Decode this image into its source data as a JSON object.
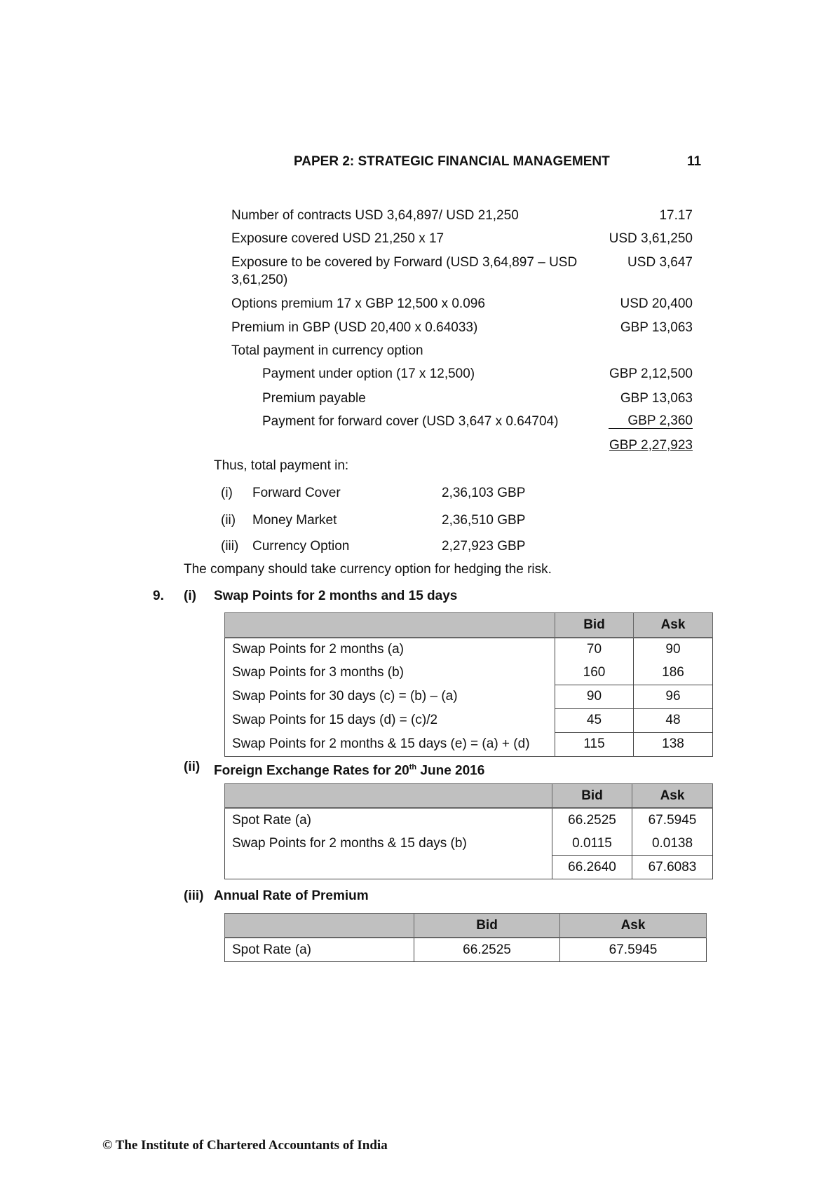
{
  "header": {
    "title": "PAPER 2: STRATEGIC FINANCIAL MANAGEMENT",
    "page_number": "11"
  },
  "calc_rows": [
    {
      "label": "Number of contracts USD 3,64,897/ USD 21,250",
      "value": "17.17"
    },
    {
      "label": "Exposure covered USD  21,250 x 17",
      "value": "USD 3,61,250"
    },
    {
      "label": "Exposure to be covered by Forward (USD 3,64,897 – USD",
      "label_cont": "3,61,250)",
      "value": "USD 3,647"
    },
    {
      "label": "Options premium 17 x GBP 12,500 x 0.096",
      "value": "USD 20,400"
    },
    {
      "label": "Premium in GBP (USD 20,400 x 0.64033)",
      "value": "GBP 13,063"
    },
    {
      "label": "Total payment in currency option",
      "value": ""
    },
    {
      "label": "Payment under option (17 x 12,500)",
      "value": "GBP 2,12,500"
    },
    {
      "label": "Premium payable",
      "value": "GBP 13,063"
    },
    {
      "label": "Payment for forward cover (USD 3,647 x 0.64704)",
      "value": "GBP 2,360"
    },
    {
      "label": "",
      "value": "GBP 2,27,923"
    }
  ],
  "summary": {
    "intro": "Thus, total payment in:",
    "items": [
      {
        "num": "(i)",
        "label": "Forward Cover",
        "value": "2,36,103 GBP"
      },
      {
        "num": "(ii)",
        "label": "Money Market",
        "value": "2,36,510 GBP"
      },
      {
        "num": "(iii)",
        "label": "Currency Option",
        "value": "2,27,923 GBP"
      }
    ],
    "conclusion": "The company should take currency option for hedging the risk."
  },
  "q9": {
    "number": "9.",
    "part1": {
      "num": "(i)",
      "title": "Swap Points for 2 months and 15 days",
      "headers": [
        "",
        "Bid",
        "Ask"
      ],
      "rows": [
        [
          "Swap Points for 2 months (a)",
          "70",
          "90"
        ],
        [
          "Swap Points for 3 months (b)",
          "160",
          "186"
        ],
        [
          "Swap Points for 30 days (c) = (b) – (a)",
          "90",
          "96"
        ],
        [
          "Swap Points for 15 days (d) = (c)/2",
          "45",
          "48"
        ],
        [
          "Swap Points for 2 months & 15 days (e) = (a) + (d)",
          "115",
          "138"
        ]
      ]
    },
    "part2": {
      "num": "(ii)",
      "title": "Foreign Exchange Rates for 20",
      "title_sup": "th",
      "title_end": " June 2016",
      "headers": [
        "",
        "Bid",
        "Ask"
      ],
      "rows": [
        [
          "Spot Rate (a)",
          "66.2525",
          "67.5945"
        ],
        [
          "Swap Points for 2 months & 15 days (b)",
          "0.0115",
          "0.0138"
        ],
        [
          "",
          "66.2640",
          "67.6083"
        ]
      ]
    },
    "part3": {
      "num": "(iii)",
      "title": "Annual Rate of Premium",
      "headers": [
        "",
        "Bid",
        "Ask"
      ],
      "rows": [
        [
          "Spot Rate (a)",
          "66.2525",
          "67.5945"
        ]
      ]
    }
  },
  "footer": "© The Institute of Chartered Accountants of India",
  "colors": {
    "table_header_bg": "#c0c0c0"
  }
}
